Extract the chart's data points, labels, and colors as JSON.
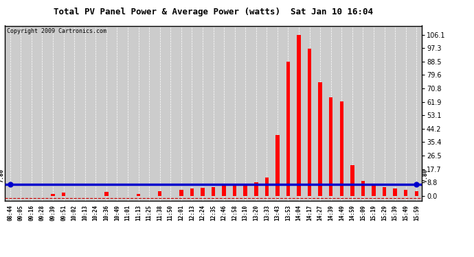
{
  "title": "Total PV Panel Power & Average Power (watts)  Sat Jan 10 16:04",
  "copyright": "Copyright 2009 Cartronics.com",
  "yticks": [
    0.0,
    8.8,
    17.7,
    26.5,
    35.4,
    44.2,
    53.1,
    61.9,
    70.8,
    79.6,
    88.5,
    97.3,
    106.1
  ],
  "ylim": [
    -3,
    112
  ],
  "avg_line_y": 7.8,
  "avg_label": "7.80",
  "bg_color": "#ffffff",
  "plot_bg_color": "#cccccc",
  "bar_color": "#ff0000",
  "line_color": "#0000cc",
  "dash_line_color": "#cc0000",
  "grid_color": "#ffffff",
  "xtick_labels": [
    "08:44",
    "09:05",
    "09:16",
    "09:28",
    "09:39",
    "09:51",
    "10:02",
    "10:13",
    "10:24",
    "10:36",
    "10:49",
    "11:01",
    "11:13",
    "11:25",
    "11:38",
    "11:50",
    "12:01",
    "12:13",
    "12:24",
    "12:35",
    "12:46",
    "12:58",
    "13:10",
    "13:20",
    "13:33",
    "13:43",
    "13:53",
    "14:04",
    "14:17",
    "14:27",
    "14:39",
    "14:49",
    "14:59",
    "15:09",
    "15:19",
    "15:29",
    "15:39",
    "15:49",
    "15:59"
  ],
  "bar_heights": [
    0,
    0,
    0,
    0,
    1.5,
    2.0,
    0,
    0,
    0,
    2.5,
    0,
    0,
    1.5,
    0,
    3.0,
    0,
    4.0,
    5.0,
    5.5,
    6.0,
    6.5,
    7.0,
    7.5,
    9.0,
    12.0,
    40.0,
    88.5,
    106.1,
    97.0,
    75.0,
    65.0,
    62.0,
    20.0,
    10.0,
    8.0,
    6.0,
    5.0,
    4.0,
    3.0
  ]
}
